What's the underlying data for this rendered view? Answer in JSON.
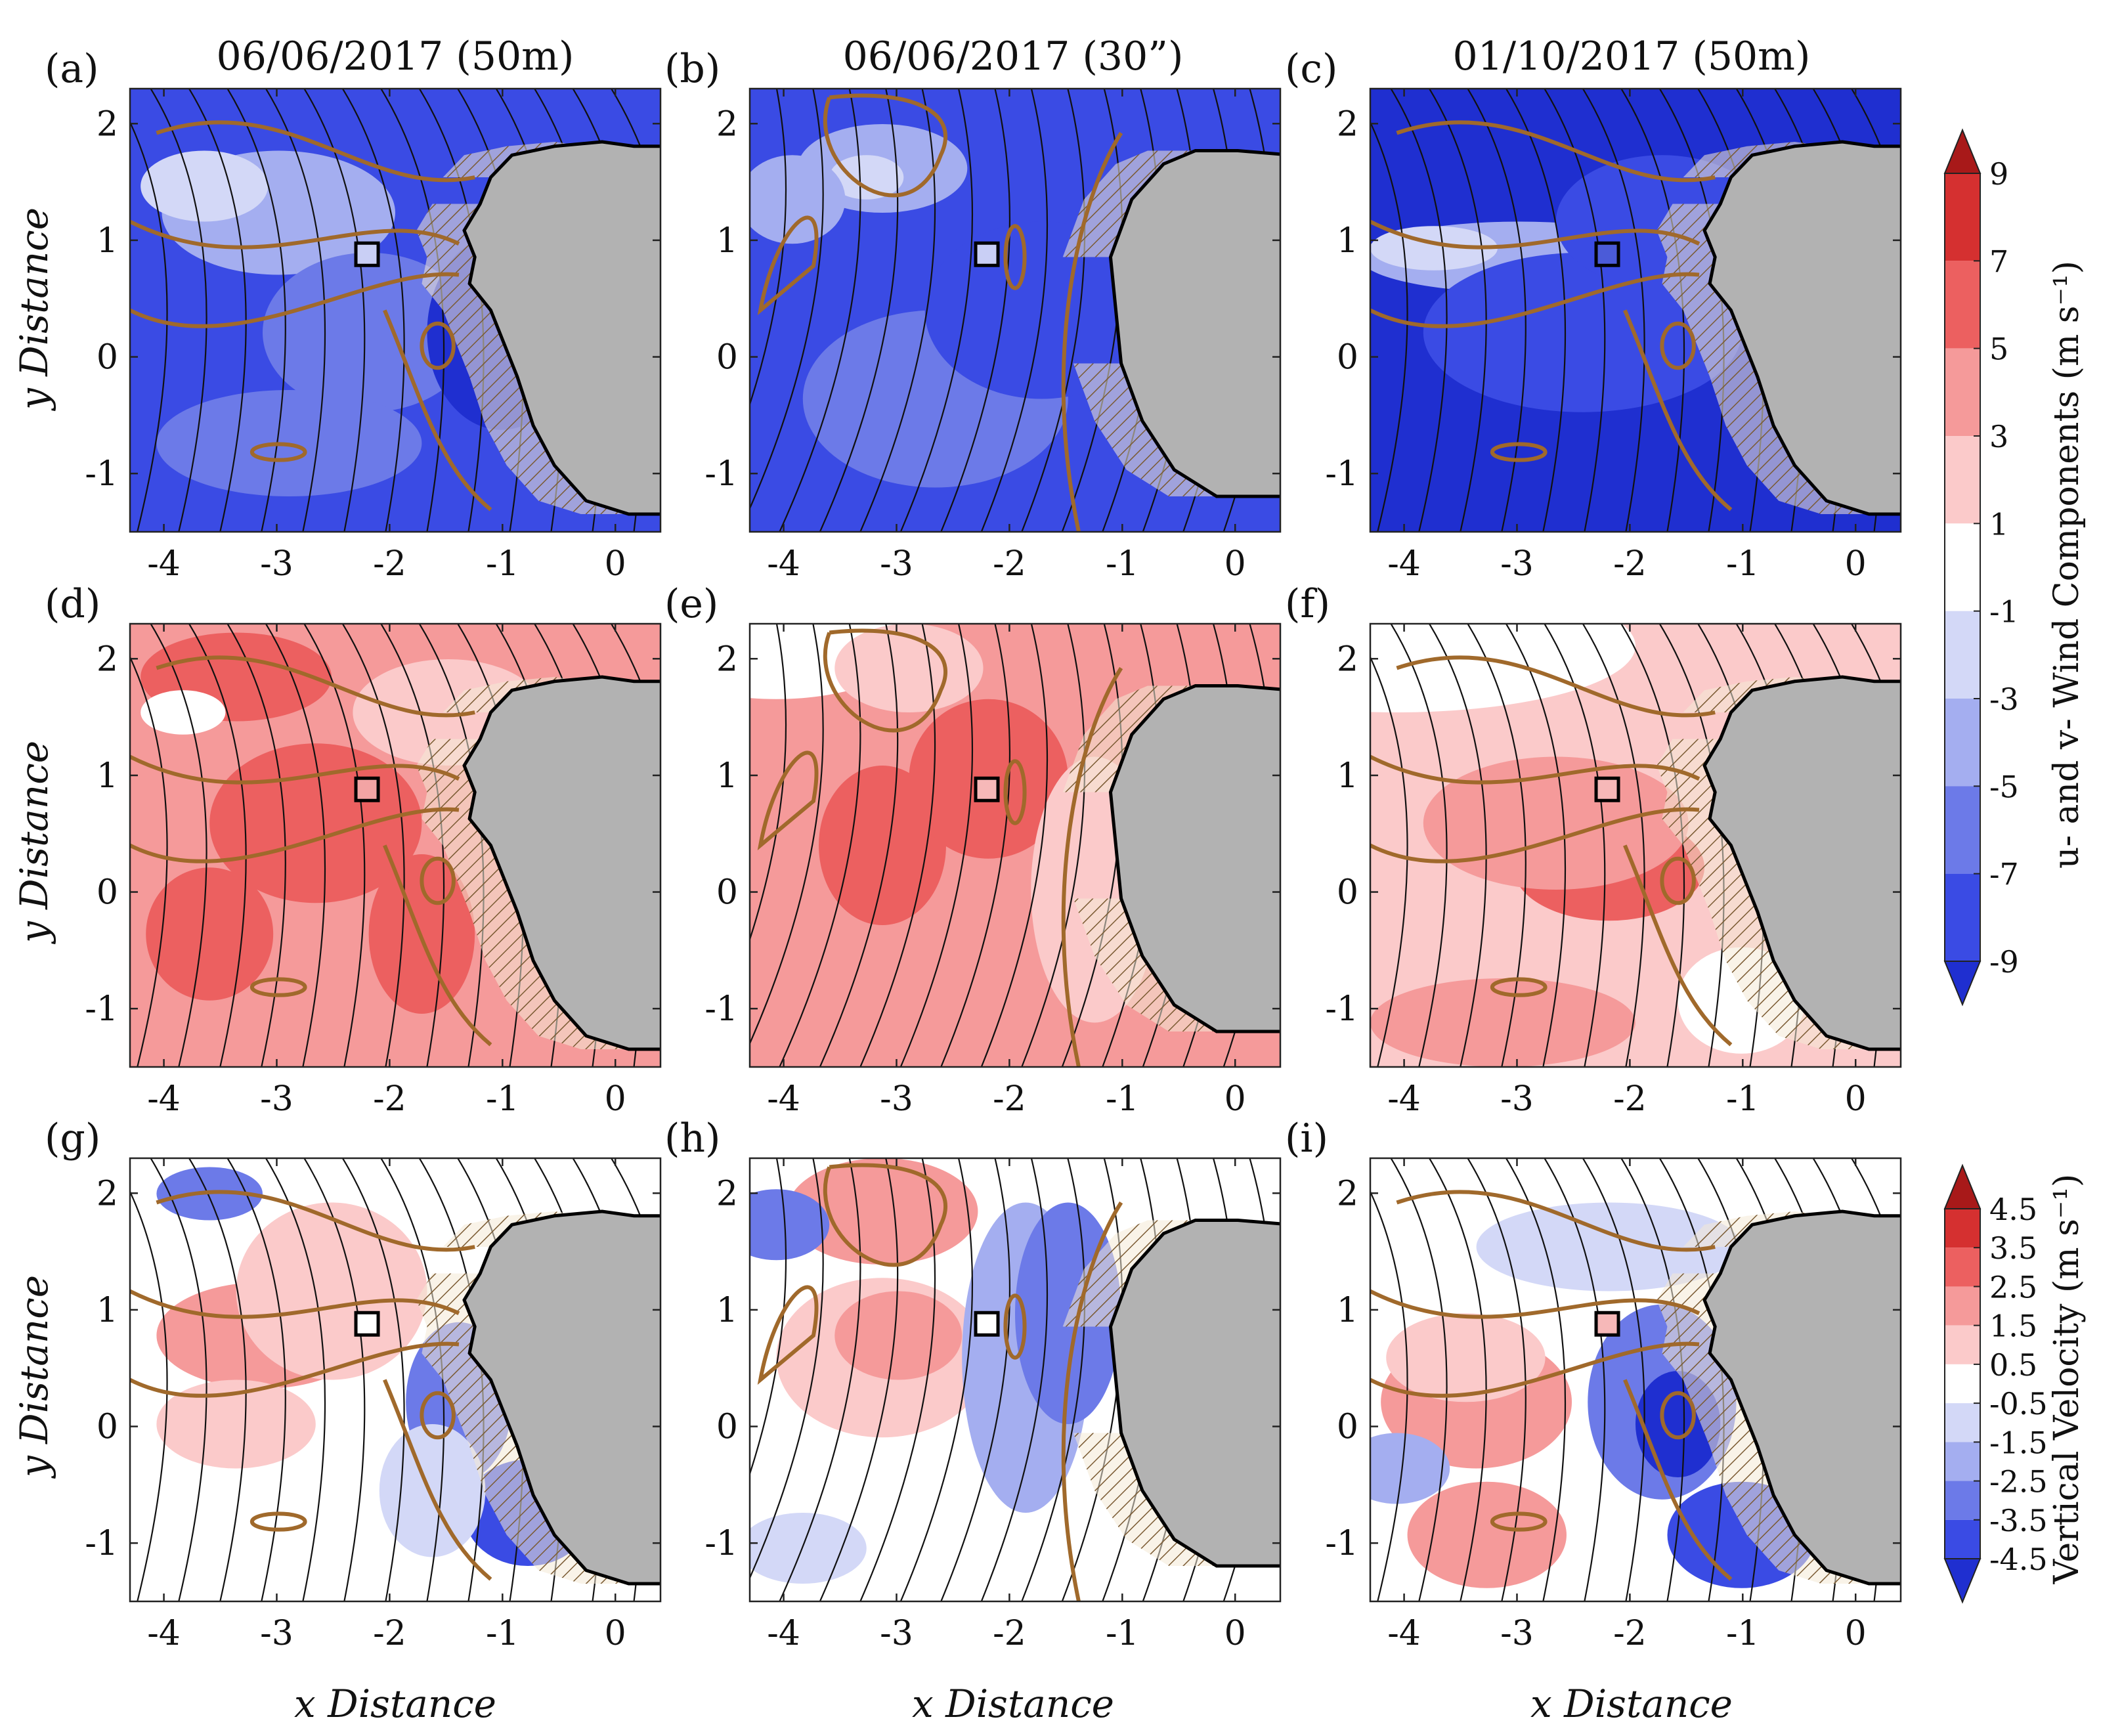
{
  "chart_data": {
    "type": "contour-map-grid",
    "column_titles": [
      "06/06/2017 (50m)",
      "06/06/2017 (30”)",
      "01/10/2017 (50m)"
    ],
    "panel_labels": [
      "(a)",
      "(b)",
      "(c)",
      "(d)",
      "(e)",
      "(f)",
      "(g)",
      "(h)",
      "(i)"
    ],
    "xlabel": "x Distance",
    "ylabel": "y Distance",
    "xlim": [
      -4.3,
      0.4
    ],
    "ylim": [
      -1.5,
      2.3
    ],
    "xticks": [
      -4,
      -3,
      -2,
      -1,
      0
    ],
    "yticks": [
      -1,
      0,
      1,
      2
    ],
    "marker": {
      "x": -2.2,
      "y": 0.88
    },
    "rows": [
      {
        "field": "u",
        "cbar_group": 0
      },
      {
        "field": "v",
        "cbar_group": 0
      },
      {
        "field": "w",
        "cbar_group": 1
      }
    ],
    "colorbars": [
      {
        "label": "u- and v- Wind Components (m s⁻¹)",
        "ticks": [
          "9",
          "7",
          "5",
          "3",
          "1",
          "-1",
          "-3",
          "-5",
          "-7",
          "-9"
        ]
      },
      {
        "label": "Vertical Velocity (m s⁻¹)",
        "ticks": [
          "4.5",
          "3.5",
          "2.5",
          "1.5",
          "0.5",
          "-0.5",
          "-1.5",
          "-2.5",
          "-3.5",
          "-4.5"
        ]
      }
    ],
    "colors": {
      "red_scale": [
        "#a81919",
        "#d53030",
        "#ec6060",
        "#f59a9a",
        "#fbcaca"
      ],
      "blue_scale": [
        "#1f2fd0",
        "#3a4be4",
        "#6c7ae8",
        "#a4aef0",
        "#d3d8f7"
      ],
      "neutral": "#ffffff",
      "island": "#b2b2b2",
      "contour_brown": "#a0692b",
      "streamline": "#111111"
    }
  }
}
